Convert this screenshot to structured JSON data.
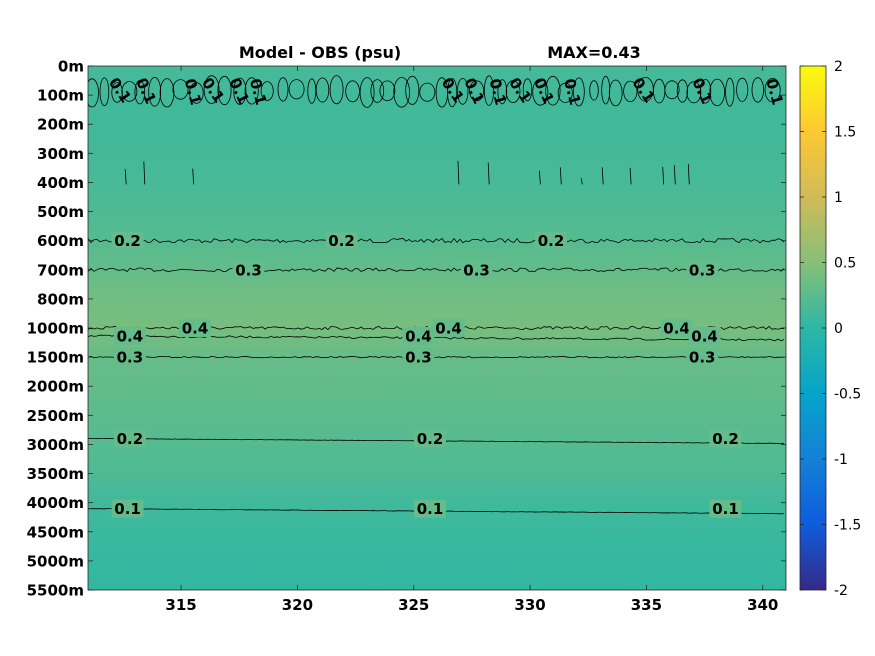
{
  "chart_data": {
    "type": "heatmap",
    "title": "Model - OBS (psu)",
    "subtitle": "MAX=0.43",
    "xlabel": "",
    "ylabel": "",
    "x_range": [
      311,
      341
    ],
    "x_ticks": [
      "315",
      "320",
      "325",
      "330",
      "335",
      "340"
    ],
    "x_tick_values": [
      315,
      320,
      325,
      330,
      335,
      340
    ],
    "y_ticks": [
      "0m",
      "100m",
      "200m",
      "300m",
      "400m",
      "500m",
      "600m",
      "700m",
      "800m",
      "1000m",
      "1500m",
      "2000m",
      "2500m",
      "3000m",
      "3500m",
      "4000m",
      "4500m",
      "5000m",
      "5500m"
    ],
    "colorbar": {
      "min": -2,
      "max": 2,
      "ticks": [
        "2",
        "1.5",
        "1",
        "0.5",
        "0",
        "-0.5",
        "-1",
        "-1.5",
        "-2"
      ],
      "tick_values": [
        2,
        1.5,
        1,
        0.5,
        0,
        -0.5,
        -1,
        -1.5,
        -2
      ],
      "colormap": "parula"
    },
    "depth_profile": [
      {
        "depth": "0m",
        "value": 0.15
      },
      {
        "depth": "100m",
        "value": 0.1
      },
      {
        "depth": "300m",
        "value": 0.12
      },
      {
        "depth": "500m",
        "value": 0.18
      },
      {
        "depth": "600m",
        "value": 0.22
      },
      {
        "depth": "700m",
        "value": 0.3
      },
      {
        "depth": "800m",
        "value": 0.38
      },
      {
        "depth": "1000m",
        "value": 0.41
      },
      {
        "depth": "1500m",
        "value": 0.32
      },
      {
        "depth": "2500m",
        "value": 0.26
      },
      {
        "depth": "3000m",
        "value": 0.22
      },
      {
        "depth": "3500m",
        "value": 0.18
      },
      {
        "depth": "4000m",
        "value": 0.1
      },
      {
        "depth": "5000m",
        "value": 0.04
      },
      {
        "depth": "5500m",
        "value": 0.02
      }
    ],
    "contours": [
      {
        "level": "0.1",
        "band": "100m"
      },
      {
        "level": "0.2",
        "band": "600m"
      },
      {
        "level": "0.3",
        "band": "700m"
      },
      {
        "level": "0.4",
        "band": "1000m"
      },
      {
        "level": "0.4",
        "band": "1000m"
      },
      {
        "level": "0.3",
        "band": "1500m"
      },
      {
        "level": "0.2",
        "band": "3000m"
      },
      {
        "level": "0.1",
        "band": "4000m"
      }
    ],
    "contour_labels": [
      {
        "text": "0.2",
        "contour": 1,
        "x": 312.7
      },
      {
        "text": "0.2",
        "contour": 1,
        "x": 321.9
      },
      {
        "text": "0.2",
        "contour": 1,
        "x": 330.9
      },
      {
        "text": "0.3",
        "contour": 2,
        "x": 317.9
      },
      {
        "text": "0.3",
        "contour": 2,
        "x": 327.7
      },
      {
        "text": "0.3",
        "contour": 2,
        "x": 337.4
      },
      {
        "text": "0.4",
        "contour": 3,
        "x": 315.6
      },
      {
        "text": "0.4",
        "contour": 3,
        "x": 326.5
      },
      {
        "text": "0.4",
        "contour": 3,
        "x": 336.3
      },
      {
        "text": "0.4",
        "contour": 4,
        "x": 312.8
      },
      {
        "text": "0.4",
        "contour": 4,
        "x": 325.2
      },
      {
        "text": "0.4",
        "contour": 4,
        "x": 337.5
      },
      {
        "text": "0.3",
        "contour": 5,
        "x": 312.8
      },
      {
        "text": "0.3",
        "contour": 5,
        "x": 325.2
      },
      {
        "text": "0.3",
        "contour": 5,
        "x": 337.4
      },
      {
        "text": "0.2",
        "contour": 6,
        "x": 312.8
      },
      {
        "text": "0.2",
        "contour": 6,
        "x": 325.7
      },
      {
        "text": "0.2",
        "contour": 6,
        "x": 338.4
      },
      {
        "text": "0.1",
        "contour": 7,
        "x": 312.7
      },
      {
        "text": "0.1",
        "contour": 7,
        "x": 325.7
      },
      {
        "text": "0.1",
        "contour": 7,
        "x": 338.4
      }
    ],
    "surface_labels": [
      {
        "text": "0.1",
        "x": 312.2
      },
      {
        "text": "0.1",
        "x": 313.3
      },
      {
        "text": "0.1",
        "x": 315.3
      },
      {
        "text": "0.1",
        "x": 316.2
      },
      {
        "text": "0.1",
        "x": 317.3
      },
      {
        "text": "0.1",
        "x": 318.1
      },
      {
        "text": "0.1",
        "x": 326.5
      },
      {
        "text": "0.1",
        "x": 327.4
      },
      {
        "text": "0.1",
        "x": 328.4
      },
      {
        "text": "0.1",
        "x": 329.4
      },
      {
        "text": "0.1",
        "x": 330.4
      },
      {
        "text": "0.1",
        "x": 331.6
      },
      {
        "text": "0.1",
        "x": 334.7
      },
      {
        "text": "0.1",
        "x": 337.2
      },
      {
        "text": "0.1",
        "x": 340.3
      }
    ]
  }
}
